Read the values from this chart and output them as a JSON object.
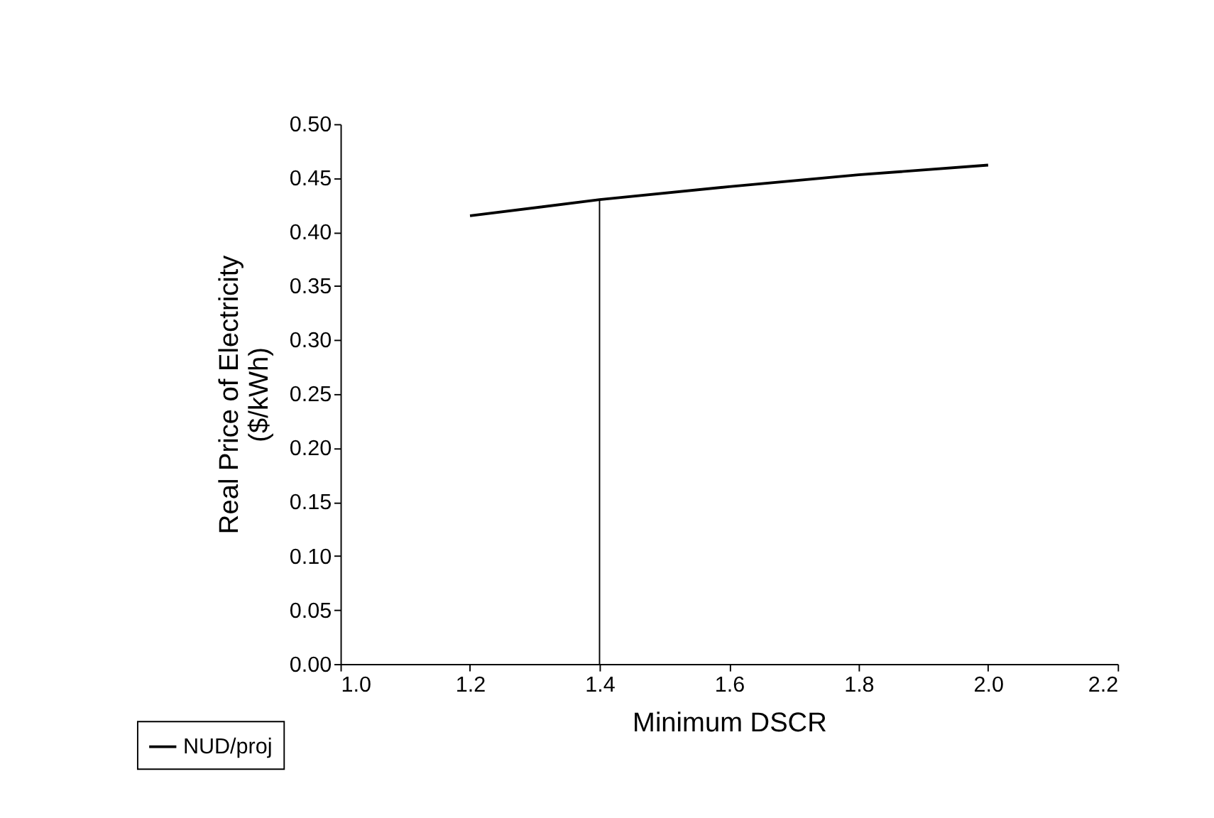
{
  "chart_data": {
    "type": "line",
    "xlabel": "Minimum DSCR",
    "ylabel": "Real Price of Electricity\n($/kWh)",
    "xlim": [
      1.0,
      2.2
    ],
    "xticks": [
      {
        "value": 1.0,
        "label": "1.0"
      },
      1.2,
      1.4,
      1.6,
      1.8,
      {
        "value": 2.0,
        "label": "2.0"
      },
      2.2
    ],
    "ylim": [
      0,
      0.5
    ],
    "yticks": [
      {
        "value": 0,
        "label": "0.00"
      },
      {
        "value": 0.05,
        "label": "0.05"
      },
      {
        "value": 0.1,
        "label": "0.10"
      },
      {
        "value": 0.15,
        "label": "0.15"
      },
      {
        "value": 0.2,
        "label": "0.20"
      },
      {
        "value": 0.25,
        "label": "0.25"
      },
      {
        "value": 0.3,
        "label": "0.30"
      },
      {
        "value": 0.35,
        "label": "0.35"
      },
      {
        "value": 0.4,
        "label": "0.40"
      },
      {
        "value": 0.45,
        "label": "0.45"
      },
      {
        "value": 0.5,
        "label": "0.50"
      }
    ],
    "series": [
      {
        "name": "NUD/proj",
        "color": "#000000",
        "x": [
          1.2,
          1.4,
          1.6,
          1.8,
          2.0
        ],
        "values": [
          0.415,
          0.43,
          0.442,
          0.453,
          0.462
        ]
      }
    ],
    "ref_lines": [
      {
        "axis": "x",
        "value": 1.4,
        "color": "#000000"
      }
    ],
    "legend": "bottom left",
    "grid": false
  }
}
